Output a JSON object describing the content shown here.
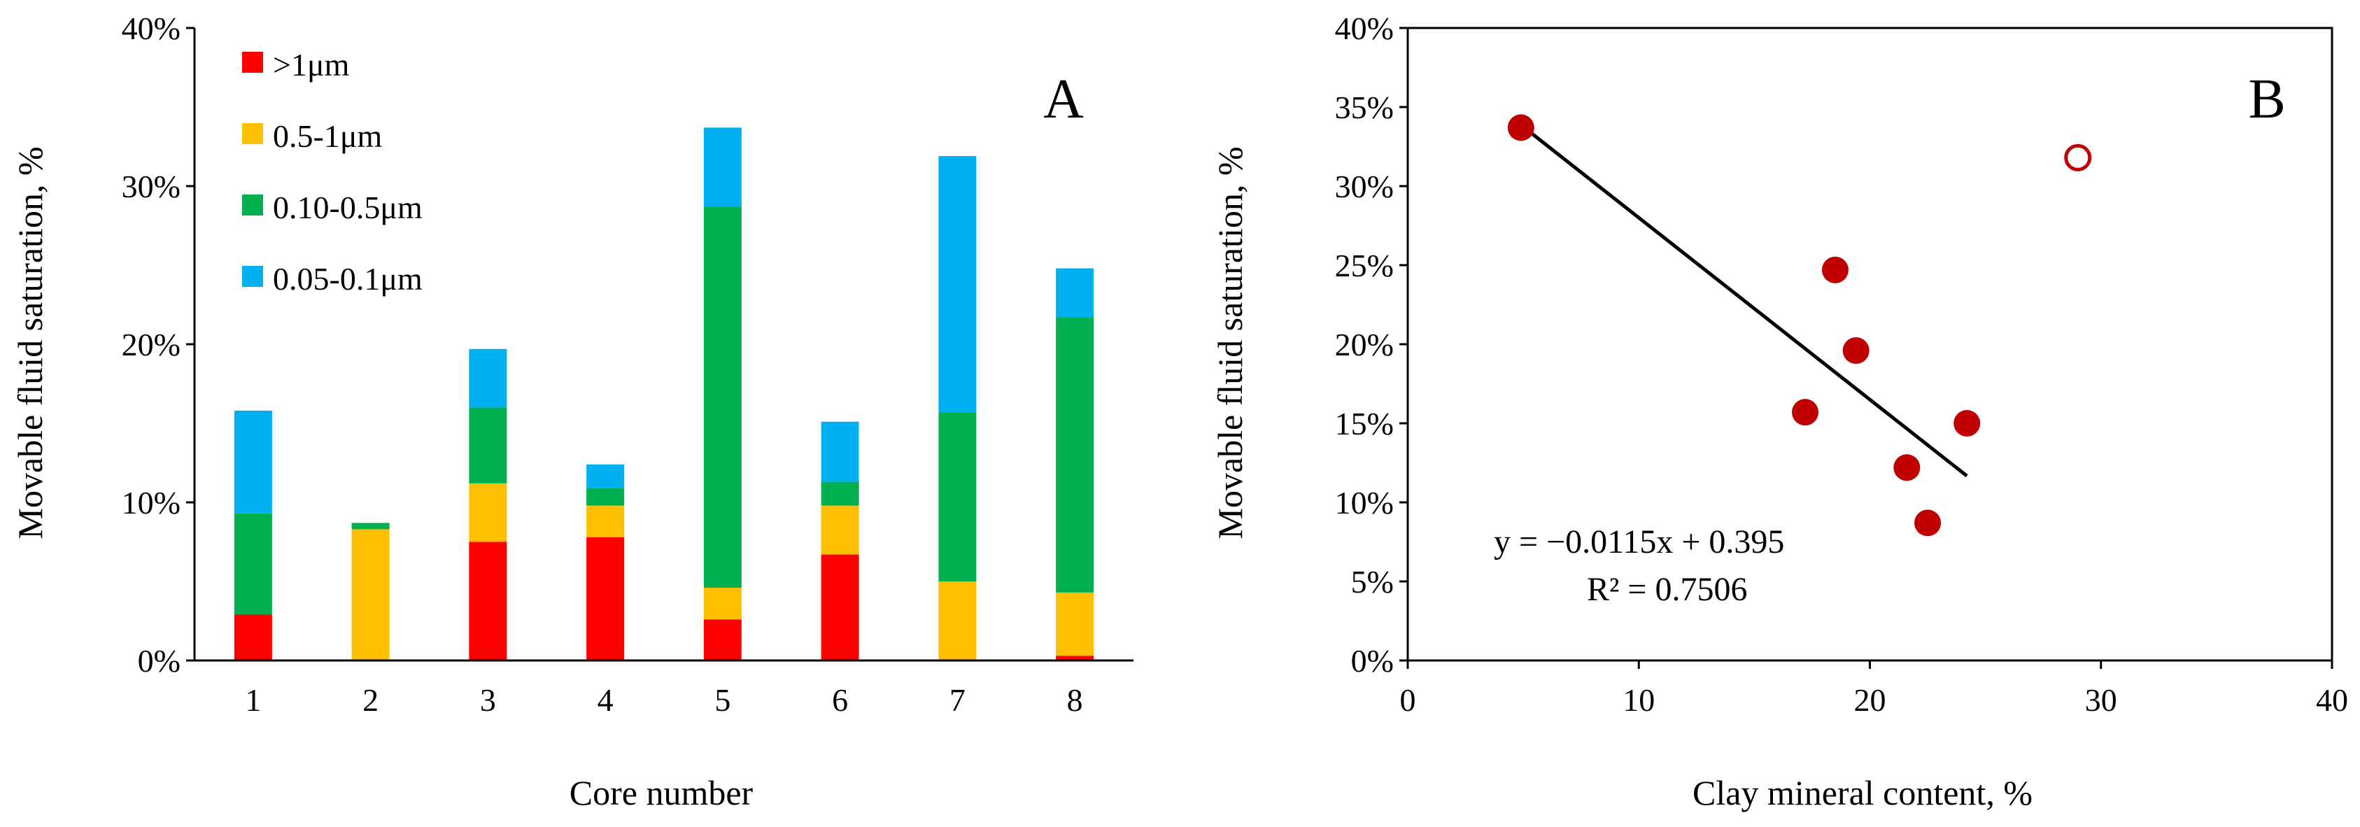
{
  "chart_data": [
    {
      "type": "bar",
      "stacked": true,
      "panel_label": "A",
      "xlabel": "Core number",
      "ylabel": "Movable fluid saturation, %",
      "categories": [
        "1",
        "2",
        "3",
        "4",
        "5",
        "6",
        "7",
        "8"
      ],
      "ylim": [
        0,
        0.4
      ],
      "y_ticks": [
        0,
        0.1,
        0.2,
        0.3,
        0.4
      ],
      "y_tick_labels": [
        "0%",
        "10%",
        "20%",
        "30%",
        "40%"
      ],
      "legend_position": "top-left",
      "series": [
        {
          "name": ">1μm",
          "color": "#ff0000",
          "values": [
            0.029,
            0.0,
            0.075,
            0.078,
            0.026,
            0.067,
            0.0,
            0.003
          ]
        },
        {
          "name": "0.5-1μm",
          "color": "#ffc000",
          "values": [
            0.0,
            0.083,
            0.037,
            0.02,
            0.02,
            0.031,
            0.05,
            0.04
          ]
        },
        {
          "name": "0.10-0.5μm",
          "color": "#00b050",
          "values": [
            0.064,
            0.004,
            0.048,
            0.011,
            0.241,
            0.015,
            0.107,
            0.174
          ]
        },
        {
          "name": "0.05-0.1μm",
          "color": "#00b0f0",
          "values": [
            0.065,
            0.0,
            0.037,
            0.015,
            0.05,
            0.038,
            0.162,
            0.031
          ]
        }
      ]
    },
    {
      "type": "scatter",
      "panel_label": "B",
      "xlabel": "Clay mineral content, %",
      "ylabel": "Movable fluid saturation, %",
      "xlim": [
        0,
        40
      ],
      "ylim": [
        0,
        0.4
      ],
      "x_ticks": [
        0,
        10,
        20,
        30,
        40
      ],
      "x_tick_labels": [
        "0",
        "10",
        "20",
        "30",
        "40"
      ],
      "y_ticks": [
        0,
        0.05,
        0.1,
        0.15,
        0.2,
        0.25,
        0.3,
        0.35,
        0.4
      ],
      "y_tick_labels": [
        "0%",
        "5%",
        "10%",
        "15%",
        "20%",
        "25%",
        "30%",
        "35%",
        "40%"
      ],
      "marker_color": "#c00000",
      "points": [
        {
          "x": 4.9,
          "y": 0.337
        },
        {
          "x": 17.2,
          "y": 0.157
        },
        {
          "x": 18.5,
          "y": 0.247
        },
        {
          "x": 19.4,
          "y": 0.196
        },
        {
          "x": 21.6,
          "y": 0.122
        },
        {
          "x": 22.5,
          "y": 0.087
        },
        {
          "x": 24.2,
          "y": 0.15
        }
      ],
      "outlier": {
        "x": 29.0,
        "y": 0.318
      },
      "trendline": {
        "slope": -0.0115,
        "intercept": 0.395,
        "x_range": [
          4.9,
          24.2
        ]
      },
      "equation": "y = −0.0115x + 0.395",
      "r_squared": "R² = 0.7506"
    }
  ]
}
